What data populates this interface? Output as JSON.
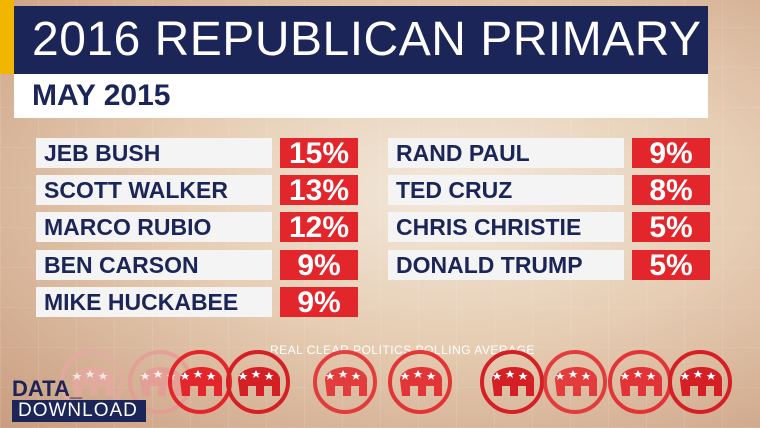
{
  "header": {
    "title": "2016 REPUBLICAN PRIMARY",
    "subtitle": "MAY 2015"
  },
  "candidates": [
    {
      "name": "JEB BUSH",
      "pct": "15%"
    },
    {
      "name": "SCOTT WALKER",
      "pct": "13%"
    },
    {
      "name": "MARCO RUBIO",
      "pct": "12%"
    },
    {
      "name": "BEN CARSON",
      "pct": "9%"
    },
    {
      "name": "MIKE HUCKABEE",
      "pct": "9%"
    },
    {
      "name": "RAND PAUL",
      "pct": "9%"
    },
    {
      "name": "TED CRUZ",
      "pct": "8%"
    },
    {
      "name": "CHRIS CHRISTIE",
      "pct": "5%"
    },
    {
      "name": "DONALD TRUMP",
      "pct": "5%"
    }
  ],
  "source": "REAL CLEAR POLITICS POLLING AVERAGE",
  "logo": {
    "line1": "DATA_",
    "line2": "DOWNLOAD"
  },
  "colors": {
    "navy": "#1c2557",
    "red": "#e3262b",
    "gold": "#f2b600"
  },
  "decoration": {
    "icon": "gop-elephant-icon"
  }
}
